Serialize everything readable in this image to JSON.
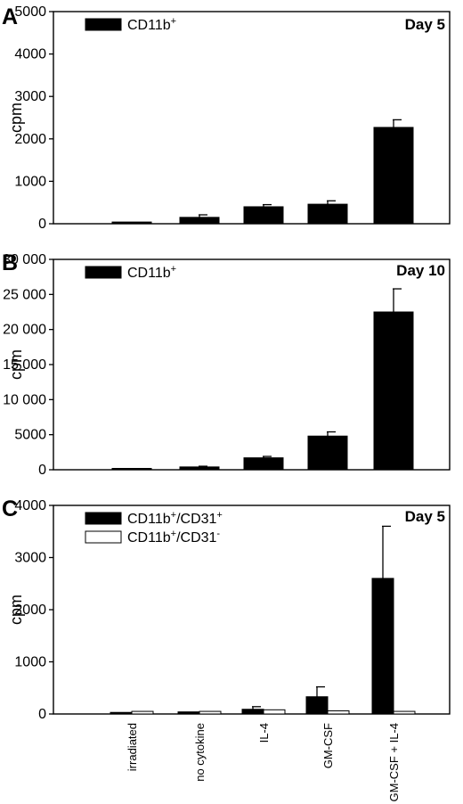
{
  "chart_data": [
    {
      "type": "bar",
      "panel": "A",
      "tag": "Day 5",
      "ylabel": "cpm",
      "ylim": [
        0,
        5000
      ],
      "yticks": [
        "0",
        "1000",
        "2000",
        "3000",
        "4000",
        "5000"
      ],
      "categories": [
        "irradiated",
        "no cytokine",
        "IL-4",
        "GM-CSF",
        "GM-CSF + IL-4"
      ],
      "legend": [
        {
          "base": "CD11b",
          "sup": "+",
          "fill": "#000000"
        }
      ],
      "legend_position": "top-left",
      "series": [
        {
          "values": [
            40,
            150,
            400,
            460,
            2270
          ],
          "errors": [
            0,
            60,
            50,
            80,
            180
          ],
          "color": "#000000"
        }
      ]
    },
    {
      "type": "bar",
      "panel": "B",
      "tag": "Day 10",
      "ylabel": "cpm",
      "ylim": [
        0,
        30000
      ],
      "yticks": [
        "0",
        "5000",
        "10 000",
        "15 000",
        "20 000",
        "25 000",
        "30 000"
      ],
      "categories": [
        "irradiated",
        "no cytokine",
        "IL-4",
        "GM-CSF",
        "GM-CSF + IL-4"
      ],
      "legend": [
        {
          "base": "CD11b",
          "sup": "+",
          "fill": "#000000"
        }
      ],
      "legend_position": "top-left",
      "series": [
        {
          "values": [
            50,
            400,
            1700,
            4800,
            22500
          ],
          "errors": [
            0,
            100,
            200,
            600,
            3300
          ],
          "color": "#000000"
        }
      ]
    },
    {
      "type": "bar",
      "panel": "C",
      "tag": "Day 5",
      "ylabel": "cpm",
      "ylim": [
        0,
        4000
      ],
      "yticks": [
        "0",
        "1000",
        "2000",
        "3000",
        "4000"
      ],
      "categories": [
        "irradiated",
        "no cytokine",
        "IL-4",
        "GM-CSF",
        "GM-CSF + IL-4"
      ],
      "legend": [
        {
          "base": "CD11b",
          "sup": "+",
          "mid": "/CD31",
          "sup2": "+",
          "fill": "#000000"
        },
        {
          "base": "CD11b",
          "sup": "+",
          "mid": "/CD31",
          "sup2": "-",
          "fill": "#ffffff"
        }
      ],
      "legend_position": "top-left",
      "series": [
        {
          "values": [
            30,
            40,
            90,
            330,
            2600
          ],
          "errors": [
            0,
            0,
            50,
            190,
            1000
          ],
          "color": "#000000"
        },
        {
          "values": [
            50,
            50,
            80,
            60,
            50
          ],
          "errors": [
            0,
            0,
            0,
            0,
            0
          ],
          "color": "#ffffff"
        }
      ]
    }
  ]
}
